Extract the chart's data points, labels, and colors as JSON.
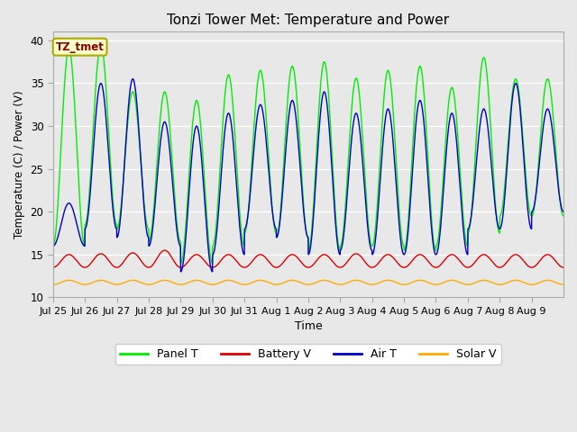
{
  "title": "Tonzi Tower Met: Temperature and Power",
  "xlabel": "Time",
  "ylabel": "Temperature (C) / Power (V)",
  "ylim": [
    10,
    41
  ],
  "yticks": [
    10,
    15,
    20,
    25,
    30,
    35,
    40
  ],
  "annotation_text": "TZ_tmet",
  "annotation_bg": "#ffffcc",
  "annotation_fg": "#880000",
  "annotation_edge": "#aaaa00",
  "legend_labels": [
    "Panel T",
    "Battery V",
    "Air T",
    "Solar V"
  ],
  "line_colors": {
    "panel_t": "#00ee00",
    "battery_v": "#dd0000",
    "air_t": "#0000cc",
    "solar_v": "#ffaa00"
  },
  "x_tick_labels": [
    "Jul 25",
    "Jul 26",
    "Jul 27",
    "Jul 28",
    "Jul 29",
    "Jul 30",
    "Jul 31",
    "Aug 1",
    "Aug 2",
    "Aug 3",
    "Aug 4",
    "Aug 5",
    "Aug 6",
    "Aug 7",
    "Aug 8",
    "Aug 9"
  ],
  "num_days": 16,
  "spd": 200,
  "panel_peaks": [
    39.0,
    39.5,
    34.0,
    34.0,
    33.0,
    36.0,
    36.5,
    37.0,
    37.5,
    35.6,
    36.5,
    37.0,
    34.5,
    38.0,
    35.5,
    35.5
  ],
  "panel_mins": [
    16.0,
    18.5,
    18.0,
    16.5,
    14.0,
    16.0,
    17.5,
    17.0,
    15.5,
    16.0,
    16.0,
    15.5,
    16.0,
    17.5,
    19.5,
    19.5
  ],
  "air_peaks": [
    21.0,
    35.0,
    35.5,
    30.5,
    30.0,
    31.5,
    32.5,
    33.0,
    34.0,
    31.5,
    32.0,
    33.0,
    31.5,
    32.0,
    35.0,
    32.0
  ],
  "air_mins": [
    16.0,
    18.0,
    17.0,
    16.0,
    13.0,
    15.0,
    18.0,
    17.0,
    15.0,
    15.5,
    15.0,
    15.0,
    15.0,
    18.0,
    18.0,
    20.0
  ],
  "batt_base": 13.5,
  "batt_peaks": [
    15.0,
    15.1,
    15.2,
    15.5,
    15.0,
    15.0,
    15.0,
    15.0,
    15.0,
    15.1,
    15.0,
    15.0,
    15.0,
    15.0,
    15.0,
    15.0
  ],
  "solar_base": 11.5,
  "solar_peaks": [
    12.0,
    12.0,
    12.0,
    12.0,
    12.0,
    12.0,
    12.0,
    12.0,
    12.0,
    12.0,
    12.0,
    12.0,
    12.0,
    12.0,
    12.0,
    12.0
  ],
  "figsize": [
    6.4,
    4.8
  ],
  "dpi": 100,
  "facecolor": "#e8e8e8"
}
